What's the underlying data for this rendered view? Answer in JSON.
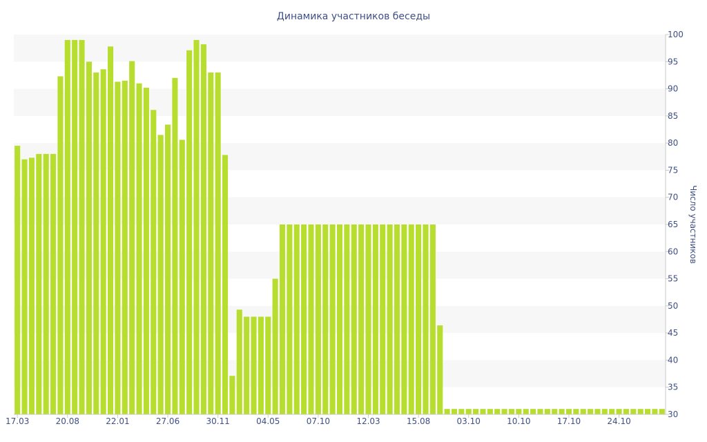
{
  "chart_data": {
    "type": "bar",
    "title": "Динамика участников беседы",
    "xlabel": "",
    "ylabel": "Число участников",
    "ylim": [
      30,
      100
    ],
    "y_ticks": [
      30,
      35,
      40,
      45,
      50,
      55,
      60,
      65,
      70,
      75,
      80,
      85,
      90,
      95,
      100
    ],
    "x_tick_labels": [
      {
        "index": 0,
        "label": "17.03"
      },
      {
        "index": 7,
        "label": "20.08"
      },
      {
        "index": 14,
        "label": "22.01"
      },
      {
        "index": 21,
        "label": "27.06"
      },
      {
        "index": 28,
        "label": "30.11"
      },
      {
        "index": 35,
        "label": "04.05"
      },
      {
        "index": 42,
        "label": "07.10"
      },
      {
        "index": 49,
        "label": "12.03"
      },
      {
        "index": 56,
        "label": "15.08"
      },
      {
        "index": 63,
        "label": "03.10"
      },
      {
        "index": 70,
        "label": "10.10"
      },
      {
        "index": 77,
        "label": "17.10"
      },
      {
        "index": 84,
        "label": "24.10"
      }
    ],
    "grid": "alternating horizontal bands",
    "bar_color": "#b7dd2f",
    "band_color": "#f7f7f7",
    "text_color": "#3f4f86",
    "values": [
      79.5,
      77,
      77.3,
      78,
      78,
      78,
      92.3,
      99,
      99,
      99,
      95,
      93,
      93.6,
      97.8,
      91.3,
      91.5,
      95.1,
      91,
      90.2,
      86.1,
      81.5,
      83.4,
      92,
      80.6,
      97.1,
      99,
      98.2,
      93,
      93,
      77.8,
      37.1,
      49.3,
      48,
      48,
      48,
      48,
      55,
      65,
      65,
      65,
      65,
      65,
      65,
      65,
      65,
      65,
      65,
      65,
      65,
      65,
      65,
      65,
      65,
      65,
      65,
      65,
      65,
      65,
      65,
      46.4,
      31,
      31,
      31,
      31,
      31,
      31,
      31,
      31,
      31,
      31,
      31,
      31,
      31,
      31,
      31,
      31,
      31,
      31,
      31,
      31,
      31,
      31,
      31,
      31,
      31,
      31,
      31,
      31,
      31,
      31,
      31
    ]
  }
}
